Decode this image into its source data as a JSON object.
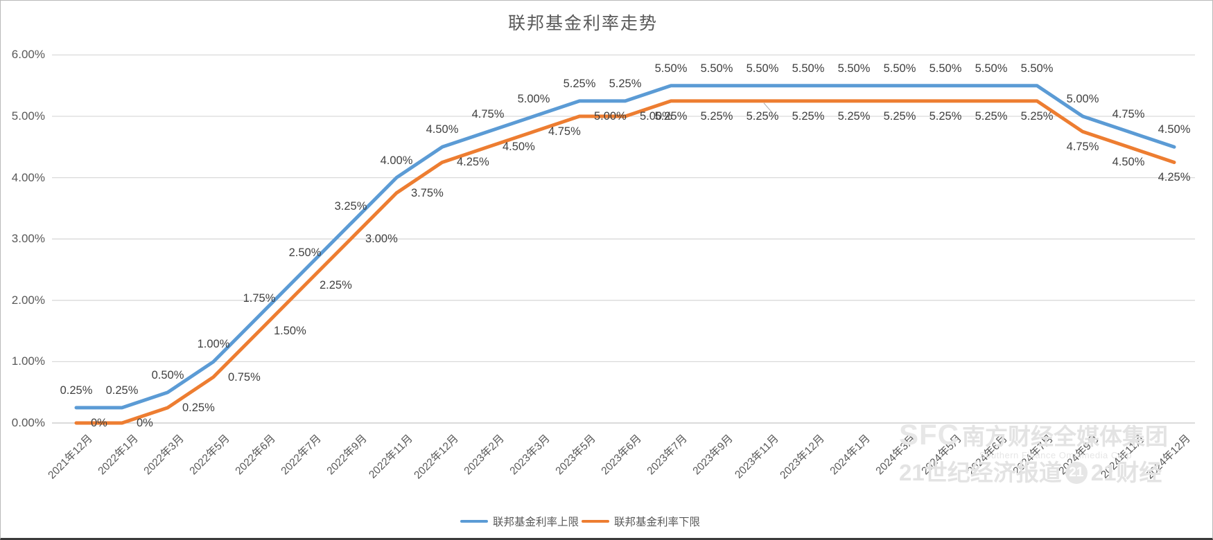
{
  "title": "联邦基金利率走势",
  "chart_data": {
    "type": "line",
    "title": "联邦基金利率走势",
    "categories": [
      "2021年12月",
      "2022年1月",
      "2022年3月",
      "2022年5月",
      "2022年6月",
      "2022年7月",
      "2022年9月",
      "2022年11月",
      "2022年12月",
      "2023年2月",
      "2023年3月",
      "2023年5月",
      "2023年6月",
      "2023年7月",
      "2023年9月",
      "2023年11月",
      "2023年12月",
      "2024年1月",
      "2024年3月",
      "2024年5月",
      "2024年6月",
      "2024年7月",
      "2024年9月",
      "2024年11月",
      "2024年12月"
    ],
    "series": [
      {
        "name": "联邦基金利率上限",
        "color": "#5B9BD5",
        "values": [
          0.25,
          0.25,
          0.5,
          1.0,
          1.75,
          2.5,
          3.25,
          4.0,
          4.5,
          4.75,
          5.0,
          5.25,
          5.25,
          5.5,
          5.5,
          5.5,
          5.5,
          5.5,
          5.5,
          5.5,
          5.5,
          5.5,
          5.0,
          4.75,
          4.5
        ],
        "labels": [
          "0.25%",
          "0.25%",
          "0.50%",
          "1.00%",
          "1.75%",
          "2.50%",
          "3.25%",
          "4.00%",
          "4.50%",
          "4.75%",
          "5.00%",
          "5.25%",
          "5.25%",
          "5.50%",
          "5.50%",
          "5.50%",
          "5.50%",
          "5.50%",
          "5.50%",
          "5.50%",
          "5.50%",
          "5.50%",
          "5.00%",
          "4.75%",
          "4.50%"
        ]
      },
      {
        "name": "联邦基金利率下限",
        "color": "#ED7D31",
        "values": [
          0,
          0,
          0.25,
          0.75,
          1.5,
          2.25,
          3.0,
          3.75,
          4.25,
          4.5,
          4.75,
          5.0,
          5.0,
          5.25,
          5.25,
          5.25,
          5.25,
          5.25,
          5.25,
          5.25,
          5.25,
          5.25,
          4.75,
          4.5,
          4.25
        ],
        "labels": [
          "0%",
          "0%",
          "0.25%",
          "0.75%",
          "1.50%",
          "2.25%",
          "3.00%",
          "3.75%",
          "4.25%",
          "4.50%",
          "4.75%",
          "5.00%",
          "5.00%",
          "5.25%",
          "5.25%",
          "5.25%",
          "5.25%",
          "5.25%",
          "5.25%",
          "5.25%",
          "5.25%",
          "5.25%",
          "4.75%",
          "4.50%",
          "4.25%"
        ]
      }
    ],
    "y_axis": {
      "ticks": [
        "0.00%",
        "1.00%",
        "2.00%",
        "3.00%",
        "4.00%",
        "5.00%",
        "6.00%"
      ],
      "tick_values": [
        0,
        1,
        2,
        3,
        4,
        5,
        6
      ],
      "min": 0,
      "max": 6
    },
    "grid": true,
    "legend_position": "bottom",
    "colors": {
      "data_label": "#404040",
      "axis_text": "#595959",
      "gridline": "#D9D9D9",
      "axis_line": "#C3C3C3",
      "leader_line": "#A6A6A6"
    }
  },
  "watermark": {
    "brand": "SFC",
    "line1": "南方财经全媒体集团",
    "line2": "Southern Finance Omnimedia Corp",
    "line3_left": "21世纪经济报道",
    "badge": "21",
    "line3_right": "21财经"
  }
}
